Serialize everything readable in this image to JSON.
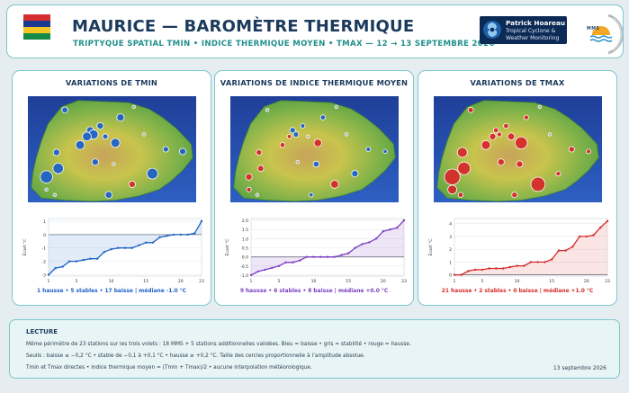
{
  "header": {
    "title": "MAURICE — BAROMÈTRE THERMIQUE",
    "subtitle": "TRIPTYQUE SPATIAL TMIN • INDICE THERMIQUE MOYEN • TMAX  —  12 → 13 SEPTEMBRE 2026",
    "flag_colors": [
      "#d62d31",
      "#1a3a8e",
      "#f4c623",
      "#138a47"
    ],
    "brand": {
      "name": "Patrick Hoareau",
      "line1": "Tropical Cyclone &",
      "line2": "Weather Monitoring"
    },
    "mms_logo_text": "MMS"
  },
  "colors": {
    "accent_border": "#7cc7cf",
    "title_navy": "#1b3a5c",
    "teal": "#21908c",
    "tmin_blue": "#1f62c8",
    "index_purple": "#7c3fc4",
    "tmax_red": "#d62b2b",
    "stable_gray": "#a9b0b8"
  },
  "panels": [
    {
      "id": "tmin",
      "title": "VARIATIONS DE TMIN",
      "summary": "1 hausse • 5 stables • 17 baisse  |  médiane -1.0 °C",
      "color": "#1f62c8"
    },
    {
      "id": "index",
      "title": "VARIATIONS DE INDICE THERMIQUE MOYEN",
      "summary": "9 hausse • 6 stables • 8 baisse  |  médiane +0.0 °C",
      "color": "#7c3fc4"
    },
    {
      "id": "tmax",
      "title": "VARIATIONS DE TMAX",
      "summary": "21 hausse • 2 stables • 0 baisse  |  médiane +1.0 °C",
      "color": "#d62b2b"
    }
  ],
  "lecture": {
    "title": "LECTURE",
    "line1": "Même périmètre de 23 stations sur les trois volets : 18 MMS + 5 stations additionnelles validées. Bleu = baisse • gris = stabilité • rouge = hausse.",
    "line2": "Seuils : baisse ≤ −0,2 °C • stable de −0,1 à +0,1 °C • hausse ≥ +0,2 °C. Taille des cercles proportionnelle à l’amplitude absolue.",
    "line3": "Tmin et Tmax directes • indice thermique moyen = (Tmin + Tmax)/2 • aucune interpolation météorologique.",
    "date": "13 septembre 2026"
  },
  "chart_data": [
    {
      "type": "line",
      "title": "",
      "ylabel": "Écart °C",
      "xlabel": "",
      "x": [
        1,
        2,
        3,
        4,
        5,
        6,
        7,
        8,
        9,
        10,
        11,
        12,
        13,
        14,
        15,
        16,
        17,
        18,
        19,
        20,
        21,
        22,
        23
      ],
      "x_ticks": [
        1,
        5,
        10,
        15,
        20,
        23
      ],
      "y_ticks": [
        -3,
        -2,
        -1,
        0,
        1
      ],
      "ylim": [
        -3.1,
        1.2
      ],
      "series": [
        {
          "color": "#1f62c8",
          "values": [
            -3.0,
            -2.5,
            -2.4,
            -2.0,
            -2.0,
            -1.9,
            -1.8,
            -1.8,
            -1.3,
            -1.1,
            -1.0,
            -1.0,
            -1.0,
            -0.8,
            -0.6,
            -0.6,
            -0.2,
            -0.1,
            0.0,
            0.0,
            0.0,
            0.1,
            1.0
          ]
        }
      ],
      "grid": true
    },
    {
      "type": "line",
      "title": "",
      "ylabel": "Écart °C",
      "xlabel": "",
      "x": [
        1,
        2,
        3,
        4,
        5,
        6,
        7,
        8,
        9,
        10,
        11,
        12,
        13,
        14,
        15,
        16,
        17,
        18,
        19,
        20,
        21,
        22,
        23
      ],
      "x_ticks": [
        1,
        5,
        10,
        15,
        20,
        23
      ],
      "y_ticks": [
        -1.0,
        -0.5,
        0.0,
        0.5,
        1.0,
        1.5,
        2.0
      ],
      "ylim": [
        -1.05,
        2.1
      ],
      "series": [
        {
          "color": "#7c3fc4",
          "values": [
            -1.0,
            -0.8,
            -0.7,
            -0.6,
            -0.5,
            -0.3,
            -0.3,
            -0.2,
            0.0,
            0.0,
            0.0,
            0.0,
            0.0,
            0.1,
            0.2,
            0.5,
            0.7,
            0.8,
            1.0,
            1.4,
            1.5,
            1.6,
            2.0
          ]
        }
      ],
      "grid": true
    },
    {
      "type": "line",
      "title": "",
      "ylabel": "Écart °C",
      "xlabel": "",
      "x": [
        1,
        2,
        3,
        4,
        5,
        6,
        7,
        8,
        9,
        10,
        11,
        12,
        13,
        14,
        15,
        16,
        17,
        18,
        19,
        20,
        21,
        22,
        23
      ],
      "x_ticks": [
        1,
        5,
        10,
        15,
        20,
        23
      ],
      "y_ticks": [
        0,
        1,
        2,
        3,
        4
      ],
      "ylim": [
        -0.1,
        4.4
      ],
      "series": [
        {
          "color": "#d62b2b",
          "values": [
            0.0,
            0.0,
            0.3,
            0.4,
            0.4,
            0.5,
            0.5,
            0.5,
            0.6,
            0.7,
            0.7,
            1.0,
            1.0,
            1.0,
            1.2,
            1.9,
            1.9,
            2.2,
            3.0,
            3.0,
            3.1,
            3.7,
            4.2
          ]
        }
      ],
      "grid": true
    }
  ],
  "station_maps": [
    {
      "panel": "tmin",
      "stations": [
        {
          "lon": 0.22,
          "lat": 0.13,
          "delta": -0.8
        },
        {
          "lon": 0.55,
          "lat": 0.2,
          "delta": -1.3
        },
        {
          "lon": 0.43,
          "lat": 0.28,
          "delta": -1.0
        },
        {
          "lon": 0.37,
          "lat": 0.32,
          "delta": -1.2
        },
        {
          "lon": 0.39,
          "lat": 0.36,
          "delta": -2.0
        },
        {
          "lon": 0.35,
          "lat": 0.38,
          "delta": -1.8
        },
        {
          "lon": 0.46,
          "lat": 0.38,
          "delta": -0.6
        },
        {
          "lon": 0.52,
          "lat": 0.44,
          "delta": -1.9
        },
        {
          "lon": 0.31,
          "lat": 0.46,
          "delta": -1.8
        },
        {
          "lon": 0.69,
          "lat": 0.36,
          "delta": 0.1
        },
        {
          "lon": 0.82,
          "lat": 0.5,
          "delta": -0.7
        },
        {
          "lon": 0.92,
          "lat": 0.52,
          "delta": -1.0
        },
        {
          "lon": 0.51,
          "lat": 0.64,
          "delta": 0.0
        },
        {
          "lon": 0.4,
          "lat": 0.62,
          "delta": -1.0
        },
        {
          "lon": 0.17,
          "lat": 0.53,
          "delta": -1.0
        },
        {
          "lon": 0.18,
          "lat": 0.68,
          "delta": -2.4
        },
        {
          "lon": 0.11,
          "lat": 0.76,
          "delta": -3.0
        },
        {
          "lon": 0.74,
          "lat": 0.73,
          "delta": -2.5
        },
        {
          "lon": 0.62,
          "lat": 0.83,
          "delta": 1.0
        },
        {
          "lon": 0.48,
          "lat": 0.93,
          "delta": -1.1
        },
        {
          "lon": 0.11,
          "lat": 0.88,
          "delta": 0.0
        },
        {
          "lon": 0.63,
          "lat": 0.1,
          "delta": -0.1
        },
        {
          "lon": 0.16,
          "lat": 0.93,
          "delta": 0.0
        }
      ]
    },
    {
      "panel": "index",
      "stations": [
        {
          "lon": 0.22,
          "lat": 0.13,
          "delta": 0.0
        },
        {
          "lon": 0.55,
          "lat": 0.2,
          "delta": -0.5
        },
        {
          "lon": 0.43,
          "lat": 0.28,
          "delta": -0.3
        },
        {
          "lon": 0.37,
          "lat": 0.32,
          "delta": -0.7
        },
        {
          "lon": 0.39,
          "lat": 0.36,
          "delta": -0.6
        },
        {
          "lon": 0.35,
          "lat": 0.38,
          "delta": 0.2
        },
        {
          "lon": 0.46,
          "lat": 0.38,
          "delta": 0.1
        },
        {
          "lon": 0.52,
          "lat": 0.44,
          "delta": 1.4
        },
        {
          "lon": 0.31,
          "lat": 0.46,
          "delta": 0.5
        },
        {
          "lon": 0.69,
          "lat": 0.36,
          "delta": 0.0
        },
        {
          "lon": 0.82,
          "lat": 0.5,
          "delta": -0.3
        },
        {
          "lon": 0.92,
          "lat": 0.52,
          "delta": -0.2
        },
        {
          "lon": 0.51,
          "lat": 0.64,
          "delta": -0.8
        },
        {
          "lon": 0.4,
          "lat": 0.62,
          "delta": 0.0
        },
        {
          "lon": 0.17,
          "lat": 0.53,
          "delta": 0.7
        },
        {
          "lon": 0.18,
          "lat": 0.68,
          "delta": 0.9
        },
        {
          "lon": 0.11,
          "lat": 0.76,
          "delta": 1.0
        },
        {
          "lon": 0.74,
          "lat": 0.73,
          "delta": -1.0
        },
        {
          "lon": 0.62,
          "lat": 0.83,
          "delta": 1.5
        },
        {
          "lon": 0.48,
          "lat": 0.93,
          "delta": -0.2
        },
        {
          "lon": 0.11,
          "lat": 0.88,
          "delta": 0.4
        },
        {
          "lon": 0.63,
          "lat": 0.1,
          "delta": 0.0
        },
        {
          "lon": 0.16,
          "lat": 0.93,
          "delta": 0.0
        }
      ]
    },
    {
      "panel": "tmax",
      "stations": [
        {
          "lon": 0.22,
          "lat": 0.13,
          "delta": 0.6
        },
        {
          "lon": 0.55,
          "lat": 0.2,
          "delta": 0.4
        },
        {
          "lon": 0.43,
          "lat": 0.28,
          "delta": 0.5
        },
        {
          "lon": 0.37,
          "lat": 0.32,
          "delta": 0.5
        },
        {
          "lon": 0.39,
          "lat": 0.36,
          "delta": 0.4
        },
        {
          "lon": 0.35,
          "lat": 0.38,
          "delta": 1.0
        },
        {
          "lon": 0.46,
          "lat": 0.38,
          "delta": 1.2
        },
        {
          "lon": 0.52,
          "lat": 0.44,
          "delta": 3.0
        },
        {
          "lon": 0.31,
          "lat": 0.46,
          "delta": 1.9
        },
        {
          "lon": 0.69,
          "lat": 0.36,
          "delta": 0.0
        },
        {
          "lon": 0.82,
          "lat": 0.5,
          "delta": 0.7
        },
        {
          "lon": 0.92,
          "lat": 0.52,
          "delta": 0.3
        },
        {
          "lon": 0.51,
          "lat": 0.64,
          "delta": 1.0
        },
        {
          "lon": 0.4,
          "lat": 0.62,
          "delta": 1.0
        },
        {
          "lon": 0.17,
          "lat": 0.53,
          "delta": 2.2
        },
        {
          "lon": 0.18,
          "lat": 0.68,
          "delta": 3.1
        },
        {
          "lon": 0.11,
          "lat": 0.76,
          "delta": 4.2
        },
        {
          "lon": 0.74,
          "lat": 0.73,
          "delta": 0.4
        },
        {
          "lon": 0.62,
          "lat": 0.83,
          "delta": 3.7
        },
        {
          "lon": 0.48,
          "lat": 0.93,
          "delta": 0.7
        },
        {
          "lon": 0.11,
          "lat": 0.88,
          "delta": 1.9
        },
        {
          "lon": 0.63,
          "lat": 0.1,
          "delta": 0.0
        },
        {
          "lon": 0.16,
          "lat": 0.93,
          "delta": 0.5
        }
      ]
    }
  ]
}
